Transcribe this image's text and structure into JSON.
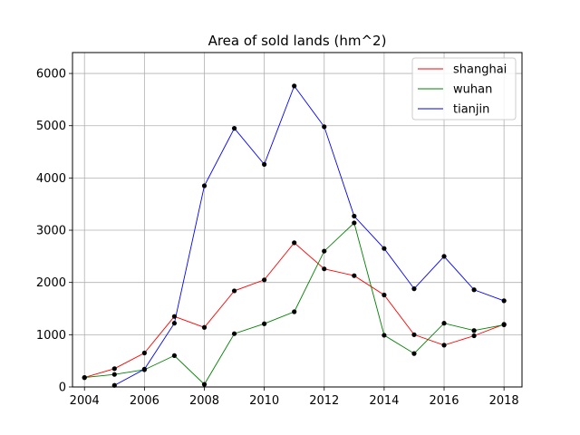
{
  "chart_data": {
    "type": "line",
    "title": "Area of sold lands (hm^2)",
    "xlabel": "",
    "ylabel": "",
    "xlim": [
      2003.6,
      2018.6
    ],
    "ylim": [
      0,
      6400
    ],
    "xticks": [
      2004,
      2006,
      2008,
      2010,
      2012,
      2014,
      2016,
      2018
    ],
    "yticks": [
      0,
      1000,
      2000,
      3000,
      4000,
      5000,
      6000
    ],
    "grid": true,
    "legend_position": "top-right",
    "marker_color": "#000000",
    "series": [
      {
        "name": "shanghai",
        "color": "#ff0000",
        "x": [
          2004,
          2005,
          2006,
          2007,
          2008,
          2009,
          2010,
          2011,
          2012,
          2013,
          2014,
          2015,
          2016,
          2017,
          2018
        ],
        "values": [
          180,
          350,
          650,
          1350,
          1140,
          1840,
          2050,
          2760,
          2260,
          2130,
          1760,
          1000,
          800,
          980,
          1200
        ]
      },
      {
        "name": "wuhan",
        "color": "#008000",
        "x": [
          2004,
          2005,
          2006,
          2007,
          2008,
          2009,
          2010,
          2011,
          2012,
          2013,
          2014,
          2015,
          2016,
          2017,
          2018
        ],
        "values": [
          180,
          240,
          330,
          600,
          50,
          1020,
          1210,
          1440,
          2600,
          3140,
          990,
          640,
          1220,
          1080,
          1190
        ]
      },
      {
        "name": "tianjin",
        "color": "#0000ff",
        "x": [
          2005,
          2006,
          2007,
          2008,
          2009,
          2010,
          2011,
          2012,
          2013,
          2014,
          2015,
          2016,
          2017,
          2018
        ],
        "values": [
          30,
          340,
          1220,
          3850,
          4950,
          4260,
          5760,
          4980,
          3270,
          2650,
          1880,
          2500,
          1860,
          1650
        ]
      }
    ]
  }
}
